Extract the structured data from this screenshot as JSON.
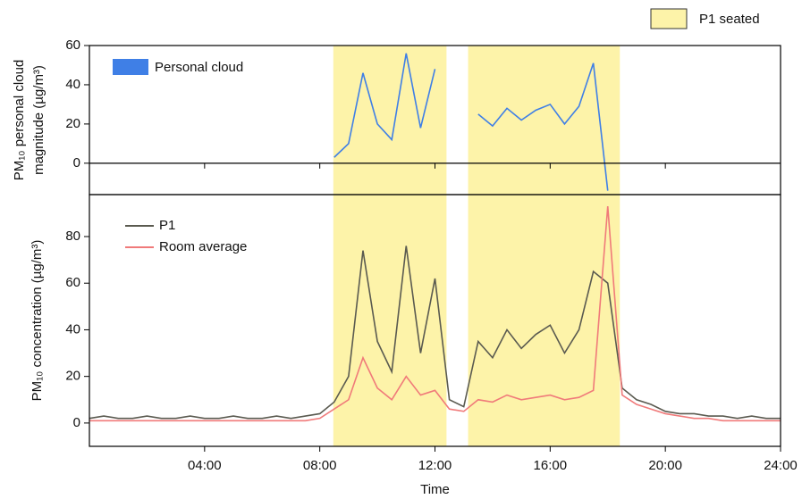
{
  "chart_data": [
    {
      "type": "line",
      "ylabel": [
        "PM₁₀ personal cloud",
        "magnitude (µg/m³)"
      ],
      "shaded_periods": {
        "label": "P1 seated",
        "color": "#fdf3a9",
        "ranges": [
          [
            8.47,
            12.4
          ],
          [
            13.15,
            18.42
          ]
        ]
      },
      "x": [
        0,
        0.5,
        1,
        1.5,
        2,
        2.5,
        3,
        3.5,
        4,
        4.5,
        5,
        5.5,
        6,
        6.5,
        7,
        7.5,
        8,
        8.5,
        9,
        9.5,
        10,
        10.5,
        11,
        11.5,
        12,
        12.5,
        13,
        13.5,
        14,
        14.5,
        15,
        15.5,
        16,
        16.5,
        17,
        17.5,
        18,
        18.5,
        19,
        19.5,
        20,
        20.5,
        21,
        21.5,
        22,
        22.5,
        23,
        23.5,
        24
      ],
      "series": [
        {
          "name": "Personal cloud",
          "color": "#3f7fe6",
          "values": [
            null,
            null,
            null,
            null,
            null,
            null,
            null,
            null,
            null,
            null,
            null,
            null,
            null,
            null,
            null,
            null,
            null,
            3,
            10,
            46,
            20,
            12,
            56,
            18,
            48,
            null,
            null,
            25,
            19,
            28,
            22,
            27,
            30,
            20,
            29,
            51,
            -14,
            null,
            null,
            null,
            null,
            null,
            null,
            null,
            null,
            null,
            null,
            null,
            null
          ]
        }
      ],
      "xlim": [
        0,
        24
      ],
      "ylim": [
        -16,
        60
      ],
      "yticks": [
        0,
        20,
        40,
        60
      ]
    },
    {
      "type": "line",
      "ylabel": "PM₁₀ concentration (µg/m³)",
      "xlabel": "Time",
      "x": [
        0,
        0.5,
        1,
        1.5,
        2,
        2.5,
        3,
        3.5,
        4,
        4.5,
        5,
        5.5,
        6,
        6.5,
        7,
        7.5,
        8,
        8.5,
        9,
        9.5,
        10,
        10.5,
        11,
        11.5,
        12,
        12.5,
        13,
        13.5,
        14,
        14.5,
        15,
        15.5,
        16,
        16.5,
        17,
        17.5,
        18,
        18.5,
        19,
        19.5,
        20,
        20.5,
        21,
        21.5,
        22,
        22.5,
        23,
        23.5,
        24
      ],
      "series": [
        {
          "name": "P1",
          "color": "#5a5a50",
          "values": [
            2,
            3,
            2,
            2,
            3,
            2,
            2,
            3,
            2,
            2,
            3,
            2,
            2,
            3,
            2,
            3,
            4,
            9,
            20,
            74,
            35,
            22,
            76,
            30,
            62,
            10,
            7,
            35,
            28,
            40,
            32,
            38,
            42,
            30,
            40,
            65,
            60,
            15,
            10,
            8,
            5,
            4,
            4,
            3,
            3,
            2,
            3,
            2,
            2
          ]
        },
        {
          "name": "Room average",
          "color": "#f07a7a",
          "values": [
            1,
            1,
            1,
            1,
            1,
            1,
            1,
            1,
            1,
            1,
            1,
            1,
            1,
            1,
            1,
            1,
            2,
            6,
            10,
            28,
            15,
            10,
            20,
            12,
            14,
            6,
            5,
            10,
            9,
            12,
            10,
            11,
            12,
            10,
            11,
            14,
            93,
            12,
            8,
            6,
            4,
            3,
            2,
            2,
            1,
            1,
            1,
            1,
            1
          ]
        }
      ],
      "xlim": [
        0,
        24
      ],
      "ylim": [
        -10,
        98
      ],
      "yticks": [
        0,
        20,
        40,
        60,
        80
      ],
      "xticks": [
        {
          "value": 4,
          "label": "04:00"
        },
        {
          "value": 8,
          "label": "08:00"
        },
        {
          "value": 12,
          "label": "12:00"
        },
        {
          "value": 16,
          "label": "16:00"
        },
        {
          "value": 20,
          "label": "20:00"
        },
        {
          "value": 24,
          "label": "24:00"
        }
      ]
    }
  ]
}
